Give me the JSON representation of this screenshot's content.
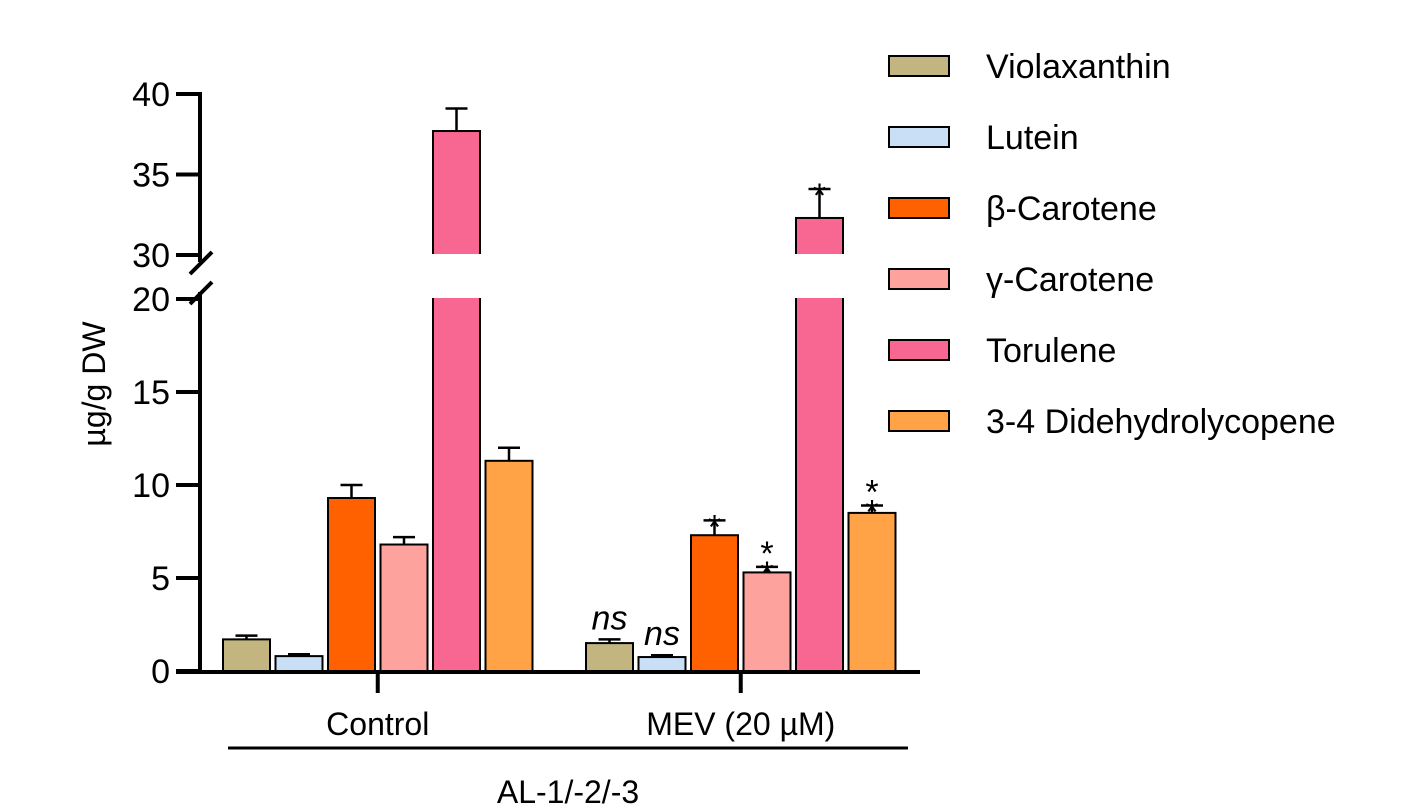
{
  "chart_data": {
    "type": "bar",
    "ylabel": "µg/g DW",
    "broken_axis": {
      "lower_range": [
        0,
        20
      ],
      "upper_range": [
        30,
        40
      ],
      "lower_ticks": [
        0,
        5,
        10,
        15,
        20
      ],
      "upper_ticks": [
        30,
        35,
        40
      ]
    },
    "categories": [
      "Control",
      "MEV (20 µM)"
    ],
    "group_bracket_label": "AL-1/-2/-3",
    "legend_position": "right",
    "series": [
      {
        "name": "Violaxanthin",
        "color": "#c2b57f",
        "values": [
          1.7,
          1.5
        ],
        "errors": [
          0.2,
          0.2
        ],
        "annotations": [
          "",
          "ns"
        ]
      },
      {
        "name": "Lutein",
        "color": "#c9dff6",
        "values": [
          0.8,
          0.75
        ],
        "errors": [
          0.1,
          0.1
        ],
        "annotations": [
          "",
          "ns"
        ]
      },
      {
        "name": "β-Carotene",
        "color": "#ff6100",
        "values": [
          9.3,
          7.3
        ],
        "errors": [
          0.7,
          0.8
        ],
        "annotations": [
          "",
          "*"
        ]
      },
      {
        "name": "γ-Carotene",
        "color": "#fda29c",
        "values": [
          6.8,
          5.3
        ],
        "errors": [
          0.4,
          0.3
        ],
        "annotations": [
          "",
          "**"
        ]
      },
      {
        "name": "Torulene",
        "color": "#f76792",
        "values": [
          37.7,
          32.3
        ],
        "errors": [
          1.4,
          1.8
        ],
        "annotations": [
          "",
          "*"
        ]
      },
      {
        "name": "3-4 Didehydrolycopene",
        "color": "#ffa346",
        "values": [
          11.3,
          8.5
        ],
        "errors": [
          0.7,
          0.4
        ],
        "annotations": [
          "",
          "**"
        ]
      }
    ]
  }
}
